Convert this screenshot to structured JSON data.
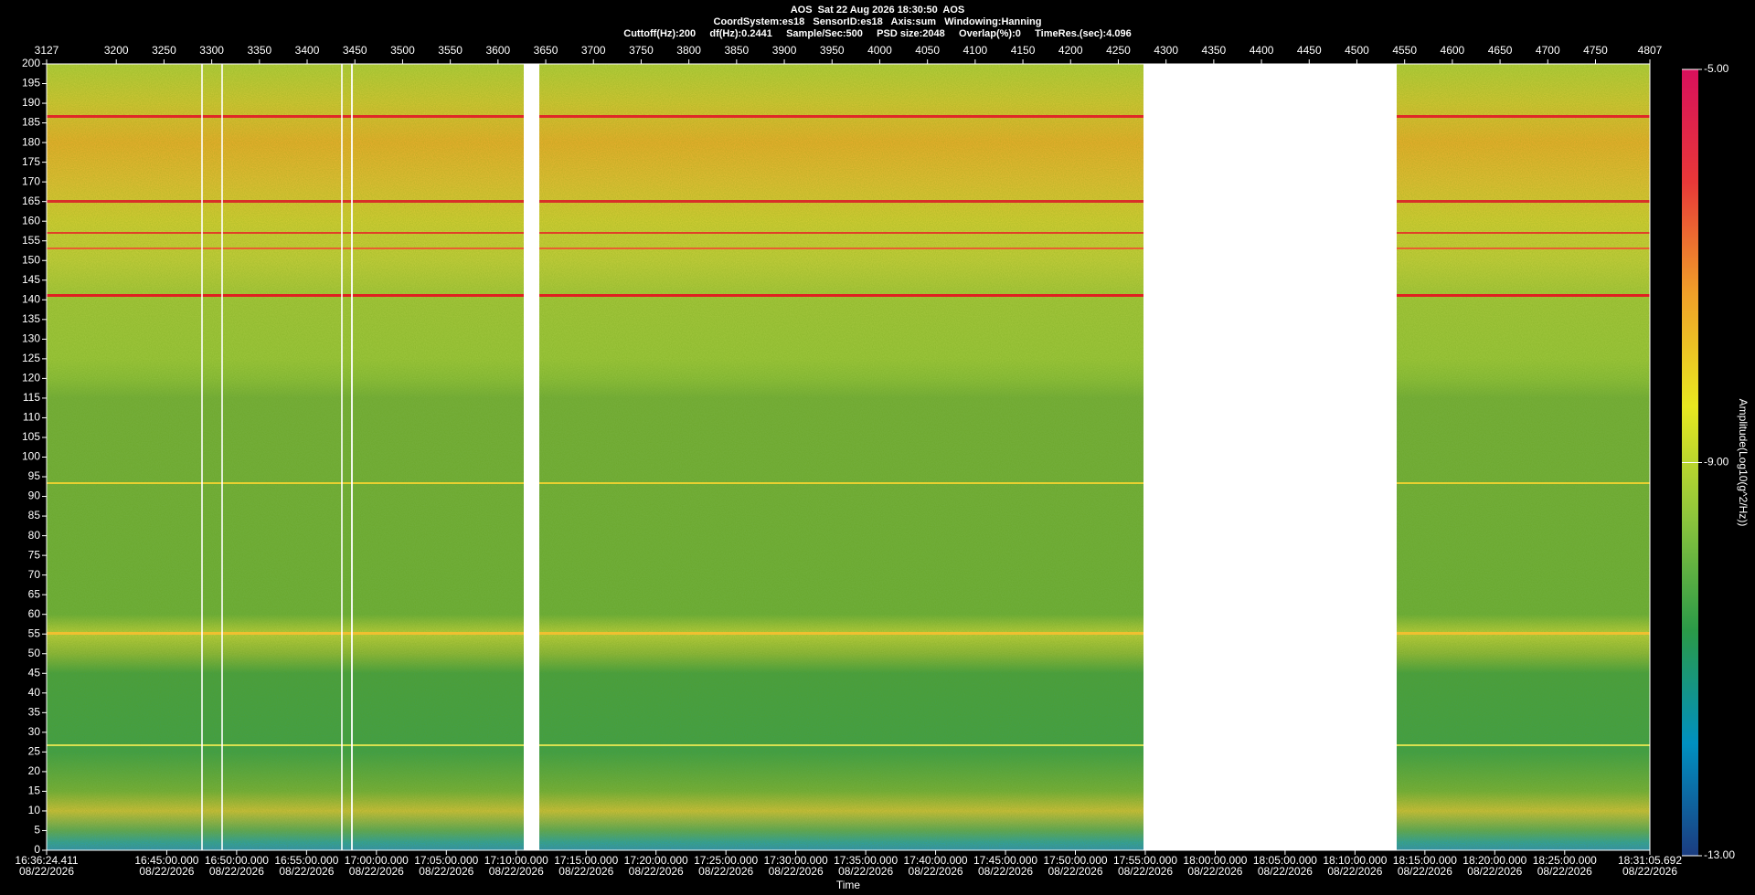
{
  "chart_data": {
    "type": "spectrogram",
    "title_lines": [
      "AOS  Sat 22 Aug 2026 18:30:50  AOS",
      "CoordSystem:es18   SensorID:es18   Axis:sum   Windowing:Hanning",
      "Cuttoff(Hz):200     df(Hz):0.2441     Sample/Sec:500     PSD size:2048     Overlap(%):0     TimeRes.(sec):4.096"
    ],
    "xlim": [
      3127,
      4807
    ],
    "xticks": [
      3127,
      3200,
      3250,
      3300,
      3350,
      3400,
      3450,
      3500,
      3550,
      3600,
      3650,
      3700,
      3750,
      3800,
      3850,
      3900,
      3950,
      4000,
      4050,
      4100,
      4150,
      4200,
      4250,
      4300,
      4350,
      4400,
      4450,
      4500,
      4550,
      4600,
      4650,
      4700,
      4750,
      4807
    ],
    "ylim": [
      0,
      200
    ],
    "yticks": [
      0,
      5,
      10,
      15,
      20,
      25,
      30,
      35,
      40,
      45,
      50,
      55,
      60,
      65,
      70,
      75,
      80,
      85,
      90,
      95,
      100,
      105,
      110,
      115,
      120,
      125,
      130,
      135,
      140,
      145,
      150,
      155,
      160,
      165,
      170,
      175,
      180,
      185,
      190,
      195,
      200
    ],
    "time_axis": {
      "label": "Time",
      "lim": [
        "2026-08-22T16:36:24.411",
        "2026-08-22T18:31:05.692"
      ],
      "ticks": [
        {
          "value": "2026-08-22T16:36:24.411",
          "label": "16:36:24.411",
          "date": "08/22/2026"
        },
        {
          "value": "2026-08-22T16:45:00.000",
          "label": "16:45:00.000",
          "date": "08/22/2026"
        },
        {
          "value": "2026-08-22T16:50:00.000",
          "label": "16:50:00.000",
          "date": "08/22/2026"
        },
        {
          "value": "2026-08-22T16:55:00.000",
          "label": "16:55:00.000",
          "date": "08/22/2026"
        },
        {
          "value": "2026-08-22T17:00:00.000",
          "label": "17:00:00.000",
          "date": "08/22/2026"
        },
        {
          "value": "2026-08-22T17:05:00.000",
          "label": "17:05:00.000",
          "date": "08/22/2026"
        },
        {
          "value": "2026-08-22T17:10:00.000",
          "label": "17:10:00.000",
          "date": "08/22/2026"
        },
        {
          "value": "2026-08-22T17:15:00.000",
          "label": "17:15:00.000",
          "date": "08/22/2026"
        },
        {
          "value": "2026-08-22T17:20:00.000",
          "label": "17:20:00.000",
          "date": "08/22/2026"
        },
        {
          "value": "2026-08-22T17:25:00.000",
          "label": "17:25:00.000",
          "date": "08/22/2026"
        },
        {
          "value": "2026-08-22T17:30:00.000",
          "label": "17:30:00.000",
          "date": "08/22/2026"
        },
        {
          "value": "2026-08-22T17:35:00.000",
          "label": "17:35:00.000",
          "date": "08/22/2026"
        },
        {
          "value": "2026-08-22T17:40:00.000",
          "label": "17:40:00.000",
          "date": "08/22/2026"
        },
        {
          "value": "2026-08-22T17:45:00.000",
          "label": "17:45:00.000",
          "date": "08/22/2026"
        },
        {
          "value": "2026-08-22T17:50:00.000",
          "label": "17:50:00.000",
          "date": "08/22/2026"
        },
        {
          "value": "2026-08-22T17:55:00.000",
          "label": "17:55:00.000",
          "date": "08/22/2026"
        },
        {
          "value": "2026-08-22T18:00:00.000",
          "label": "18:00:00.000",
          "date": "08/22/2026"
        },
        {
          "value": "2026-08-22T18:05:00.000",
          "label": "18:05:00.000",
          "date": "08/22/2026"
        },
        {
          "value": "2026-08-22T18:10:00.000",
          "label": "18:10:00.000",
          "date": "08/22/2026"
        },
        {
          "value": "2026-08-22T18:15:00.000",
          "label": "18:15:00.000",
          "date": "08/22/2026"
        },
        {
          "value": "2026-08-22T18:20:00.000",
          "label": "18:20:00.000",
          "date": "08/22/2026"
        },
        {
          "value": "2026-08-22T18:25:00.000",
          "label": "18:25:00.000",
          "date": "08/22/2026"
        },
        {
          "value": "2026-08-22T18:31:05.692",
          "label": "18:31:05.692",
          "date": "08/22/2026"
        }
      ]
    },
    "colorbar": {
      "label": "Amplitude(Log10(g^2/Hz))",
      "lim": [
        -13,
        -5
      ],
      "ticks": [
        {
          "value": -5,
          "label": "-5.00"
        },
        {
          "value": -9,
          "label": "-9.00"
        },
        {
          "value": -13,
          "label": "-13.00"
        }
      ],
      "colors": [
        "#1b3c80",
        "#0090c0",
        "#2a9a48",
        "#8cc43c",
        "#e8e820",
        "#f0a028",
        "#e83838",
        "#d8105c"
      ]
    }
  }
}
